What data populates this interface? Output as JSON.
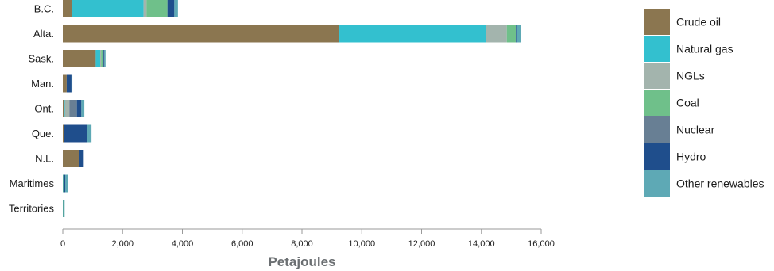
{
  "chart_data": {
    "type": "bar",
    "orientation": "horizontal",
    "stacked": true,
    "categories": [
      "B.C.",
      "Alta.",
      "Sask.",
      "Man.",
      "Ont.",
      "Que.",
      "N.L.",
      "Maritimes",
      "Territories"
    ],
    "series": [
      {
        "name": "Crude oil",
        "color": "#8b7650",
        "values": [
          300,
          9250,
          1100,
          130,
          50,
          30,
          550,
          10,
          10
        ]
      },
      {
        "name": "Natural gas",
        "color": "#33c0cf",
        "values": [
          2400,
          4900,
          150,
          0,
          20,
          0,
          0,
          30,
          20
        ]
      },
      {
        "name": "NGLs",
        "color": "#a3b4ad",
        "values": [
          100,
          700,
          30,
          0,
          150,
          0,
          0,
          0,
          0
        ]
      },
      {
        "name": "Coal",
        "color": "#6fc08a",
        "values": [
          700,
          300,
          80,
          0,
          0,
          0,
          0,
          0,
          0
        ]
      },
      {
        "name": "Nuclear",
        "color": "#687f94",
        "values": [
          0,
          0,
          0,
          0,
          250,
          0,
          0,
          0,
          0
        ]
      },
      {
        "name": "Hydro",
        "color": "#1f4e8c",
        "values": [
          230,
          20,
          30,
          160,
          150,
          780,
          150,
          40,
          10
        ]
      },
      {
        "name": "Other renewables",
        "color": "#5ea9b5",
        "values": [
          120,
          150,
          40,
          30,
          100,
          150,
          0,
          80,
          20
        ]
      }
    ],
    "xlabel": "Petajoules",
    "xlim": [
      0,
      16000
    ],
    "xticks": [
      0,
      2000,
      4000,
      6000,
      8000,
      10000,
      12000,
      14000,
      16000
    ],
    "xtick_labels": [
      "0",
      "2,000",
      "4,000",
      "6,000",
      "8,000",
      "10,000",
      "12,000",
      "14,000",
      "16,000"
    ],
    "grid": false,
    "legend_position": "right"
  }
}
